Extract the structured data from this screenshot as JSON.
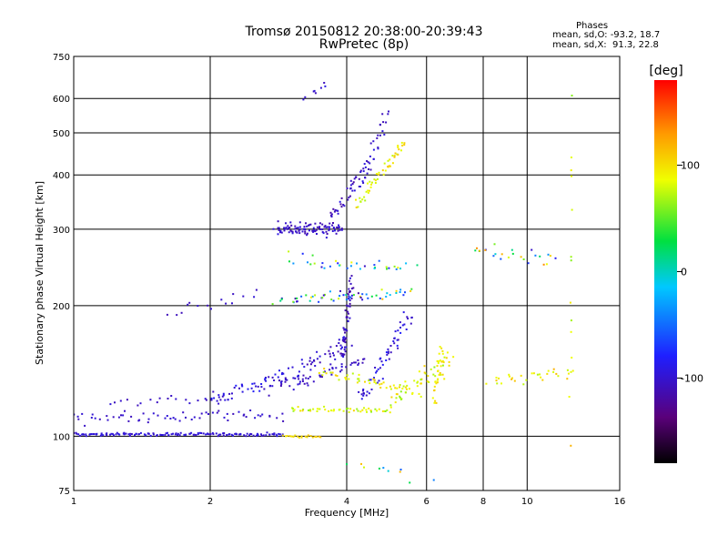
{
  "chart_data": {
    "type": "scatter",
    "title": "Tromsø 20150812 20:38:00-20:39:43",
    "subtitle": "RwPretec (8p)",
    "xlabel": "Frequency [MHz]",
    "ylabel": "Stationary phase Virtual Height [km]",
    "x_scale": "log",
    "y_scale": "log",
    "xlim": [
      1,
      16
    ],
    "ylim": [
      75,
      750
    ],
    "x_ticks": [
      1,
      2,
      4,
      6,
      8,
      10,
      16
    ],
    "y_ticks": [
      75,
      100,
      200,
      300,
      400,
      500,
      600,
      750
    ],
    "grid": true,
    "stats": {
      "heading": "Phases",
      "line1": "mean, sd,O: -93.2, 18.7",
      "line2": "mean, sd,X:  91.3, 22.8"
    },
    "colorbar": {
      "label": "[deg]",
      "range": [
        -180,
        180
      ],
      "ticks": [
        100,
        0,
        -100
      ],
      "colormap": "rainbow (black-purple-blue-cyan-green-yellow-orange-red)"
    },
    "traces": [
      {
        "from": [
          1.0,
          101
        ],
        "to": [
          2.9,
          101
        ],
        "n": 140,
        "phase": [
          -105,
          -90
        ],
        "jitter": [
          0.012,
          0.012
        ]
      },
      {
        "from": [
          2.9,
          100
        ],
        "to": [
          3.5,
          100
        ],
        "n": 20,
        "phase": [
          95,
          110
        ],
        "jitter": [
          0.01,
          0.01
        ]
      },
      {
        "from": [
          1.0,
          110
        ],
        "to": [
          2.9,
          112
        ],
        "n": 60,
        "phase": [
          -110,
          -95
        ],
        "jitter": [
          0.03,
          0.05
        ]
      },
      {
        "from": [
          1.2,
          120
        ],
        "to": [
          2.2,
          122
        ],
        "n": 20,
        "phase": [
          -110,
          -95
        ],
        "jitter": [
          0.03,
          0.03
        ]
      },
      {
        "from": [
          2.0,
          120
        ],
        "to": [
          2.9,
          140
        ],
        "n": 45,
        "phase": [
          -110,
          -80
        ],
        "jitter": [
          0.04,
          0.06
        ]
      },
      {
        "from": [
          2.7,
          130
        ],
        "to": [
          4.0,
          165
        ],
        "n": 60,
        "phase": [
          -115,
          -90
        ],
        "jitter": [
          0.05,
          0.07
        ]
      },
      {
        "from": [
          3.0,
          130
        ],
        "to": [
          4.4,
          150
        ],
        "n": 40,
        "phase": [
          -110,
          -95
        ],
        "jitter": [
          0.05,
          0.05
        ]
      },
      {
        "from": [
          3.9,
          150
        ],
        "to": [
          4.1,
          230
        ],
        "n": 60,
        "phase": [
          -120,
          -90
        ],
        "jitter": [
          0.02,
          0.06
        ]
      },
      {
        "from": [
          4.3,
          120
        ],
        "to": [
          5.5,
          190
        ],
        "n": 60,
        "phase": [
          -110,
          -80
        ],
        "jitter": [
          0.04,
          0.06
        ]
      },
      {
        "from": [
          3.0,
          115
        ],
        "to": [
          5.0,
          115
        ],
        "n": 50,
        "phase": [
          60,
          110
        ],
        "jitter": [
          0.03,
          0.02
        ]
      },
      {
        "from": [
          3.5,
          140
        ],
        "to": [
          5.3,
          130
        ],
        "n": 40,
        "phase": [
          70,
          110
        ],
        "jitter": [
          0.04,
          0.03
        ]
      },
      {
        "from": [
          5.0,
          120
        ],
        "to": [
          6.8,
          150
        ],
        "n": 60,
        "phase": [
          60,
          110
        ],
        "jitter": [
          0.04,
          0.08
        ]
      },
      {
        "from": [
          6.5,
          160
        ],
        "to": [
          6.2,
          120
        ],
        "n": 25,
        "phase": [
          80,
          110
        ],
        "jitter": [
          0.03,
          0.04
        ]
      },
      {
        "from": [
          2.8,
          300
        ],
        "to": [
          3.9,
          300
        ],
        "n": 100,
        "phase": [
          -115,
          -90
        ],
        "jitter": [
          0.03,
          0.05
        ]
      },
      {
        "from": [
          3.7,
          320
        ],
        "to": [
          4.4,
          420
        ],
        "n": 40,
        "phase": [
          -120,
          -90
        ],
        "jitter": [
          0.03,
          0.07
        ]
      },
      {
        "from": [
          4.3,
          380
        ],
        "to": [
          4.9,
          560
        ],
        "n": 30,
        "phase": [
          -110,
          -90
        ],
        "jitter": [
          0.03,
          0.05
        ]
      },
      {
        "from": [
          4.2,
          340
        ],
        "to": [
          5.4,
          480
        ],
        "n": 50,
        "phase": [
          70,
          110
        ],
        "jitter": [
          0.02,
          0.05
        ]
      },
      {
        "from": [
          2.8,
          205
        ],
        "to": [
          5.6,
          215
        ],
        "n": 55,
        "phase": [
          -120,
          120
        ],
        "jitter": [
          0.05,
          0.04
        ]
      },
      {
        "from": [
          3.0,
          255
        ],
        "to": [
          5.6,
          245
        ],
        "n": 35,
        "phase": [
          -110,
          110
        ],
        "jitter": [
          0.05,
          0.05
        ]
      },
      {
        "from": [
          7.5,
          270
        ],
        "to": [
          11.5,
          255
        ],
        "n": 25,
        "phase": [
          -110,
          140
        ],
        "jitter": [
          0.05,
          0.07
        ]
      },
      {
        "from": [
          8.3,
          135
        ],
        "to": [
          12.5,
          140
        ],
        "n": 30,
        "phase": [
          70,
          120
        ],
        "jitter": [
          0.05,
          0.05
        ]
      },
      {
        "from": [
          1.6,
          190
        ],
        "to": [
          2.5,
          215
        ],
        "n": 15,
        "phase": [
          -110,
          -90
        ],
        "jitter": [
          0.06,
          0.06
        ]
      },
      {
        "from": [
          3.2,
          600
        ],
        "to": [
          3.6,
          640
        ],
        "n": 8,
        "phase": [
          -110,
          -90
        ],
        "jitter": [
          0.03,
          0.03
        ]
      },
      {
        "from": [
          12.5,
          90
        ],
        "to": [
          12.5,
          560
        ],
        "n": 14,
        "phase": [
          60,
          120
        ],
        "jitter": [
          0.01,
          0.45
        ]
      },
      {
        "from": [
          4.1,
          85
        ],
        "to": [
          6.0,
          80
        ],
        "n": 10,
        "phase": [
          -110,
          120
        ],
        "jitter": [
          0.08,
          0.05
        ]
      }
    ]
  }
}
